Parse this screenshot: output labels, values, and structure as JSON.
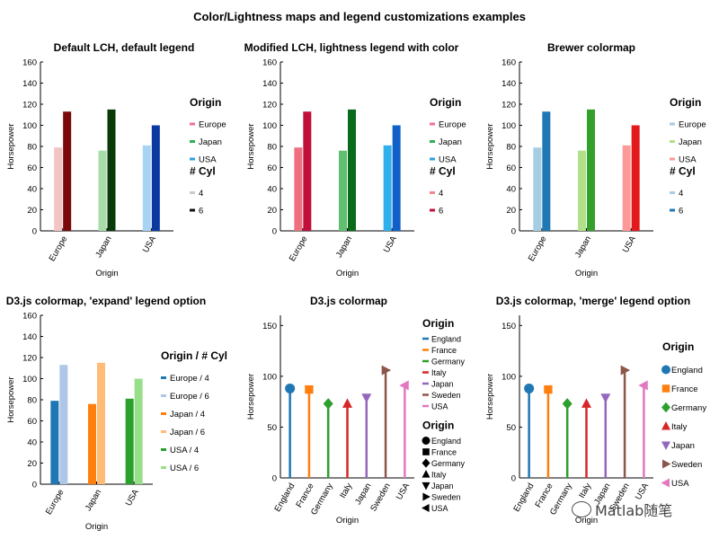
{
  "figure": {
    "title": "Color/Lightness maps and legend customizations examples"
  },
  "watermark": {
    "text": "Matlab随笔"
  },
  "chart_data": [
    {
      "type": "bar",
      "title": "Default LCH, default legend",
      "xlabel": "Origin",
      "ylabel": "Horsepower",
      "categories": [
        "Europe",
        "Japan",
        "USA"
      ],
      "ylim": [
        0,
        160
      ],
      "yticks": [
        0,
        20,
        40,
        60,
        80,
        100,
        120,
        140,
        160
      ],
      "series": [
        {
          "name": "4",
          "values": [
            79,
            76,
            81
          ],
          "colors": [
            "#f2c4c4",
            "#a8dca8",
            "#a8d4f4"
          ]
        },
        {
          "name": "6",
          "values": [
            113,
            115,
            100
          ],
          "colors": [
            "#7a0a0a",
            "#0a3a0a",
            "#0a3aa0"
          ]
        }
      ],
      "legend": {
        "groups": [
          {
            "title": "Origin",
            "entries": [
              {
                "label": "Europe",
                "color": "#f07090"
              },
              {
                "label": "Japan",
                "color": "#30b050"
              },
              {
                "label": "USA",
                "color": "#30a0d8"
              }
            ]
          },
          {
            "title": "# Cyl",
            "entries": [
              {
                "label": "4",
                "color": "#cccccc"
              },
              {
                "label": "6",
                "color": "#111111"
              }
            ]
          }
        ]
      }
    },
    {
      "type": "bar",
      "title": "Modified LCH, lightness legend with color",
      "xlabel": "Origin",
      "ylabel": "Horsepower",
      "categories": [
        "Europe",
        "Japan",
        "USA"
      ],
      "ylim": [
        0,
        160
      ],
      "yticks": [
        0,
        20,
        40,
        60,
        80,
        100,
        120,
        140,
        160
      ],
      "series": [
        {
          "name": "4",
          "values": [
            79,
            76,
            81
          ],
          "colors": [
            "#ee7080",
            "#60c070",
            "#30b0ea"
          ]
        },
        {
          "name": "6",
          "values": [
            113,
            115,
            100
          ],
          "colors": [
            "#c0103a",
            "#0a6a1a",
            "#1060c8"
          ]
        }
      ],
      "legend": {
        "groups": [
          {
            "title": "Origin",
            "entries": [
              {
                "label": "Europe",
                "color": "#f07090"
              },
              {
                "label": "Japan",
                "color": "#30b050"
              },
              {
                "label": "USA",
                "color": "#30a0d8"
              }
            ]
          },
          {
            "title": "# Cyl",
            "entries": [
              {
                "label": "4",
                "color": "#f08890"
              },
              {
                "label": "6",
                "color": "#c0103a"
              }
            ]
          }
        ]
      }
    },
    {
      "type": "bar",
      "title": "Brewer colormap",
      "xlabel": "Origin",
      "ylabel": "Horsepower",
      "categories": [
        "Europe",
        "Japan",
        "USA"
      ],
      "ylim": [
        0,
        160
      ],
      "yticks": [
        0,
        20,
        40,
        60,
        80,
        100,
        120,
        140,
        160
      ],
      "series": [
        {
          "name": "4",
          "values": [
            79,
            76,
            81
          ],
          "colors": [
            "#a6cee3",
            "#b2df8a",
            "#fb9a99"
          ]
        },
        {
          "name": "6",
          "values": [
            113,
            115,
            100
          ],
          "colors": [
            "#1f78b4",
            "#33a02c",
            "#e31a1c"
          ]
        }
      ],
      "legend": {
        "groups": [
          {
            "title": "Origin",
            "entries": [
              {
                "label": "Europe",
                "color": "#a6cee3"
              },
              {
                "label": "Japan",
                "color": "#b2df8a"
              },
              {
                "label": "USA",
                "color": "#fb9a99"
              }
            ]
          },
          {
            "title": "# Cyl",
            "entries": [
              {
                "label": "4",
                "color": "#a6cee3"
              },
              {
                "label": "6",
                "color": "#1f78b4"
              }
            ]
          }
        ]
      }
    },
    {
      "type": "bar",
      "title": "D3.js colormap, 'expand' legend option",
      "xlabel": "Origin",
      "ylabel": "Horsepower",
      "categories": [
        "Europe",
        "Japan",
        "USA"
      ],
      "ylim": [
        0,
        160
      ],
      "yticks": [
        0,
        20,
        40,
        60,
        80,
        100,
        120,
        140,
        160
      ],
      "series": [
        {
          "name": "4",
          "values": [
            79,
            76,
            81
          ],
          "colors": [
            "#1f77b4",
            "#ff7f0e",
            "#2ca02c"
          ]
        },
        {
          "name": "6",
          "values": [
            113,
            115,
            100
          ],
          "colors": [
            "#aec7e8",
            "#ffbb78",
            "#98df8a"
          ]
        }
      ],
      "legend": {
        "groups": [
          {
            "title": "Origin / # Cyl",
            "entries": [
              {
                "label": "Europe / 4",
                "color": "#1f77b4"
              },
              {
                "label": "Europe / 6",
                "color": "#aec7e8"
              },
              {
                "label": "Japan / 4",
                "color": "#ff7f0e"
              },
              {
                "label": "Japan / 6",
                "color": "#ffbb78"
              },
              {
                "label": "USA / 4",
                "color": "#2ca02c"
              },
              {
                "label": "USA / 6",
                "color": "#98df8a"
              }
            ]
          }
        ]
      }
    },
    {
      "type": "lollipop",
      "title": "D3.js colormap",
      "xlabel": "Origin",
      "ylabel": "Horsepower",
      "categories": [
        "England",
        "France",
        "Germany",
        "Italy",
        "Japan",
        "Sweden",
        "USA"
      ],
      "values": [
        88,
        87,
        73,
        73,
        79,
        106,
        91
      ],
      "markers": [
        "circle",
        "square",
        "diamond",
        "triangle-up",
        "triangle-down",
        "triangle-right",
        "triangle-left"
      ],
      "colors": [
        "#1f77b4",
        "#ff7f0e",
        "#2ca02c",
        "#d62728",
        "#9467bd",
        "#8c564b",
        "#e377c2"
      ],
      "ylim": [
        0,
        160
      ],
      "yticks": [
        0,
        50,
        100,
        150
      ],
      "legend": {
        "groups": [
          {
            "title": "Origin",
            "kind": "line",
            "entries": [
              {
                "label": "England",
                "color": "#1f77b4"
              },
              {
                "label": "France",
                "color": "#ff7f0e"
              },
              {
                "label": "Germany",
                "color": "#2ca02c"
              },
              {
                "label": "Italy",
                "color": "#d62728"
              },
              {
                "label": "Japan",
                "color": "#9467bd"
              },
              {
                "label": "Sweden",
                "color": "#8c564b"
              },
              {
                "label": "USA",
                "color": "#e377c2"
              }
            ]
          },
          {
            "title": "Origin",
            "kind": "marker",
            "entries": [
              {
                "label": "England",
                "color": "#000000",
                "marker": "circle"
              },
              {
                "label": "France",
                "color": "#000000",
                "marker": "square"
              },
              {
                "label": "Germany",
                "color": "#000000",
                "marker": "diamond"
              },
              {
                "label": "Italy",
                "color": "#000000",
                "marker": "triangle-up"
              },
              {
                "label": "Japan",
                "color": "#000000",
                "marker": "triangle-down"
              },
              {
                "label": "Sweden",
                "color": "#000000",
                "marker": "triangle-right"
              },
              {
                "label": "USA",
                "color": "#000000",
                "marker": "triangle-left"
              }
            ]
          }
        ]
      }
    },
    {
      "type": "lollipop",
      "title": "D3.js colormap, 'merge' legend option",
      "xlabel": "Origin",
      "ylabel": "Horsepower",
      "categories": [
        "England",
        "France",
        "Germany",
        "Italy",
        "Japan",
        "Sweden",
        "USA"
      ],
      "values": [
        88,
        87,
        73,
        73,
        79,
        106,
        91
      ],
      "markers": [
        "circle",
        "square",
        "diamond",
        "triangle-up",
        "triangle-down",
        "triangle-right",
        "triangle-left"
      ],
      "colors": [
        "#1f77b4",
        "#ff7f0e",
        "#2ca02c",
        "#d62728",
        "#9467bd",
        "#8c564b",
        "#e377c2"
      ],
      "ylim": [
        0,
        160
      ],
      "yticks": [
        0,
        50,
        100,
        150
      ],
      "legend": {
        "groups": [
          {
            "title": "Origin",
            "kind": "merged",
            "entries": [
              {
                "label": "England",
                "color": "#1f77b4",
                "marker": "circle"
              },
              {
                "label": "France",
                "color": "#ff7f0e",
                "marker": "square"
              },
              {
                "label": "Germany",
                "color": "#2ca02c",
                "marker": "diamond"
              },
              {
                "label": "Italy",
                "color": "#d62728",
                "marker": "triangle-up"
              },
              {
                "label": "Japan",
                "color": "#9467bd",
                "marker": "triangle-down"
              },
              {
                "label": "Sweden",
                "color": "#8c564b",
                "marker": "triangle-right"
              },
              {
                "label": "USA",
                "color": "#e377c2",
                "marker": "triangle-left"
              }
            ]
          }
        ]
      }
    }
  ]
}
